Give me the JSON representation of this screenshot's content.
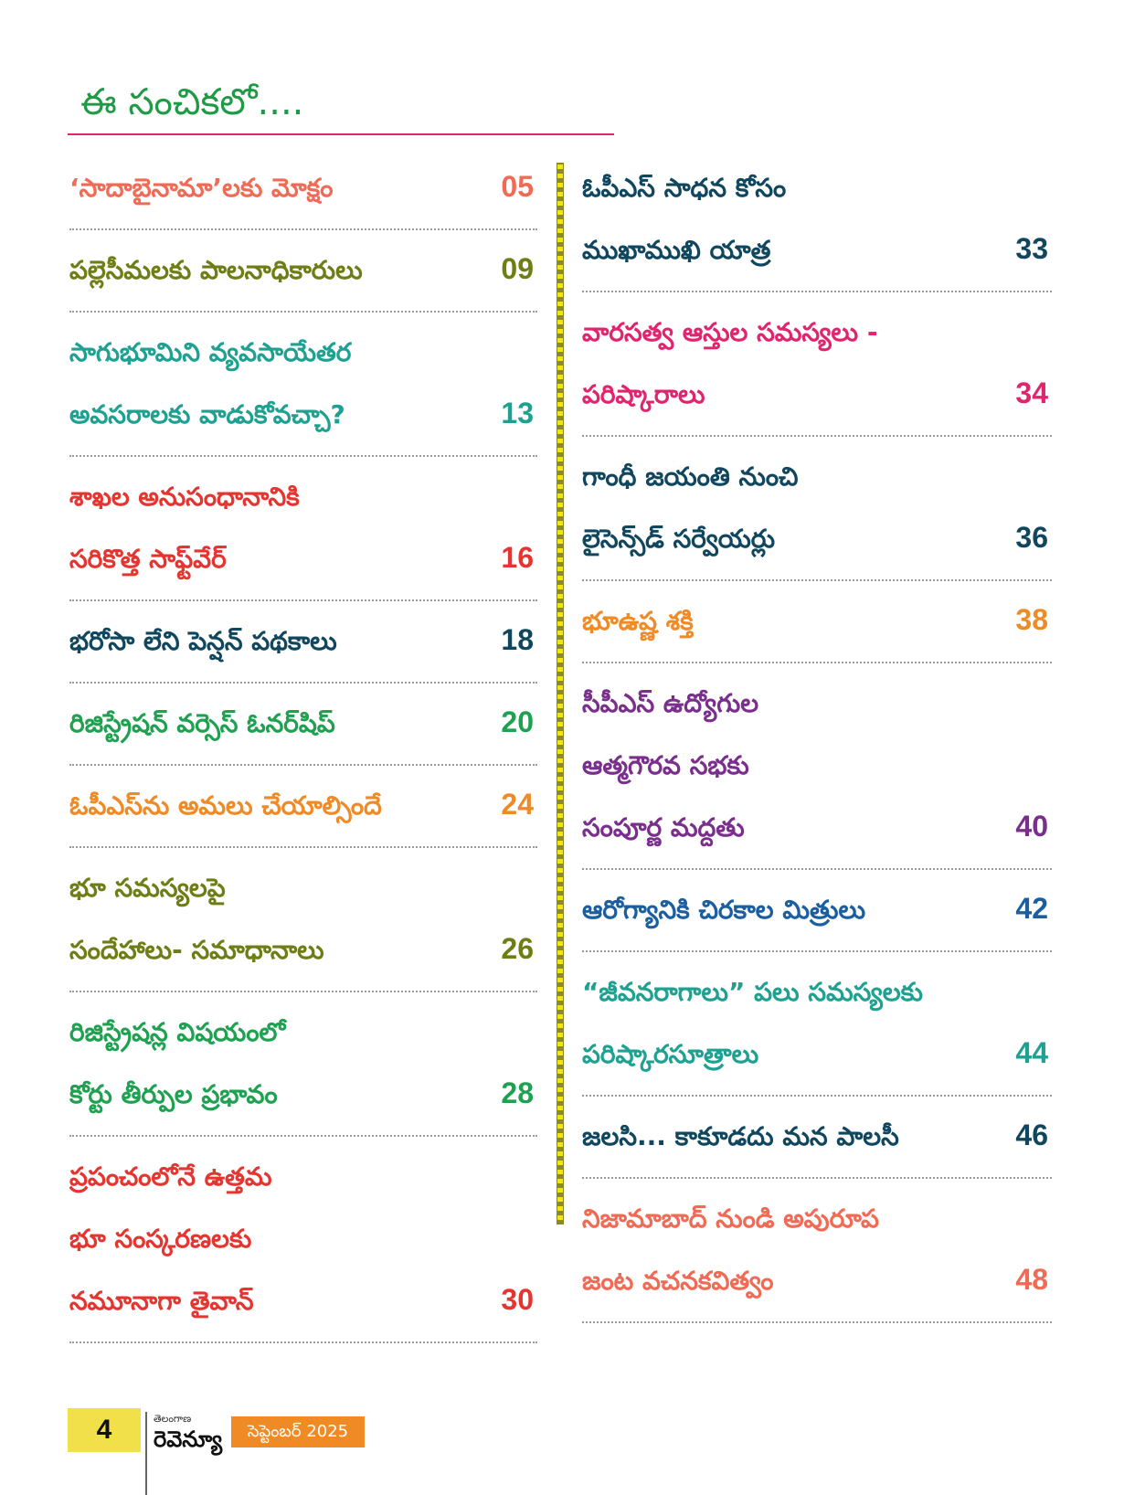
{
  "heading": "ఈ సంచికలో....",
  "left_entries": [
    {
      "lines": [
        "‘సాదాబైనామా’లకు మోక్షం"
      ],
      "page": "05",
      "color": "#ef6b55"
    },
    {
      "lines": [
        "పల్లెసీమలకు పాలనాధికారులు"
      ],
      "page": "09",
      "color": "#6e7d14"
    },
    {
      "lines": [
        "సాగుభూమిని వ్యవసాయేతర",
        "అవసరాలకు వాడుకోవచ్చా?"
      ],
      "page": "13",
      "color": "#1ea191"
    },
    {
      "lines": [
        "శాఖల అనుసంధానానికి",
        "సరికొత్త సాఫ్ట్‌వేర్"
      ],
      "page": "16",
      "color": "#e53530"
    },
    {
      "lines": [
        "భరోసా లేని పెన్షన్ పథకాలు"
      ],
      "page": "18",
      "color": "#11475e"
    },
    {
      "lines": [
        "రిజిస్ట్రేషన్ వర్సెస్ ఓనర్‌షిప్"
      ],
      "page": "20",
      "color": "#1ea150"
    },
    {
      "lines": [
        "ఓపీఎస్‌ను అమలు చేయాల్సిందే"
      ],
      "page": "24",
      "color": "#f08a24"
    },
    {
      "lines": [
        "భూ సమస్యలపై",
        "సందేహాలు- సమాధానాలు"
      ],
      "page": "26",
      "color": "#6e7d14"
    },
    {
      "lines": [
        "రిజిస్ట్రేషన్ల విషయంలో",
        "కోర్టు తీర్పుల ప్రభావం"
      ],
      "page": "28",
      "color": "#1ea150"
    },
    {
      "lines": [
        "ప్రపంచంలోనే ఉత్తమ",
        "భూ సంస్కరణలకు",
        "నమూనాగా తైవాన్"
      ],
      "page": "30",
      "color": "#e53530"
    }
  ],
  "right_entries": [
    {
      "lines": [
        "ఓపీఎస్ సాధన కోసం",
        "ముఖాముఖి యాత్ర"
      ],
      "page": "33",
      "color": "#11475e"
    },
    {
      "lines": [
        "వారసత్వ ఆస్తుల సమస్యలు -",
        "పరిష్కారాలు"
      ],
      "page": "34",
      "color": "#e0246e"
    },
    {
      "lines": [
        "గాంధీ జయంతి నుంచి",
        "లైసెన్స్‌డ్ సర్వేయర్లు"
      ],
      "page": "36",
      "color": "#11475e"
    },
    {
      "lines": [
        "భూఉష్ణ శక్తి"
      ],
      "page": "38",
      "color": "#f08a24"
    },
    {
      "lines": [
        "సీపీఎస్ ఉద్యోగుల",
        "ఆత్మగౌరవ సభకు",
        "సంపూర్ణ మద్దతు"
      ],
      "page": "40",
      "color": "#7a2f8c"
    },
    {
      "lines": [
        "ఆరోగ్యానికి చిరకాల మిత్రులు"
      ],
      "page": "42",
      "color": "#1b5fa0"
    },
    {
      "lines": [
        "“జీవనరాగాలు” పలు సమస్యలకు",
        "పరిష్కారసూత్రాలు"
      ],
      "page": "44",
      "color": "#1ea191"
    },
    {
      "lines": [
        "జలసి... కాకూడదు మన పాలసీ"
      ],
      "page": "46",
      "color": "#11475e"
    },
    {
      "lines": [
        "నిజామాబాద్ నుండి అపురూప",
        "జంట వచనకవిత్వం"
      ],
      "page": "48",
      "color": "#ef6b55"
    }
  ],
  "footer": {
    "page_number": "4",
    "brand_small": "తెలంగాణ",
    "brand_big": "రెవెన్యూ",
    "date": "సెప్టెంబర్ 2025"
  }
}
